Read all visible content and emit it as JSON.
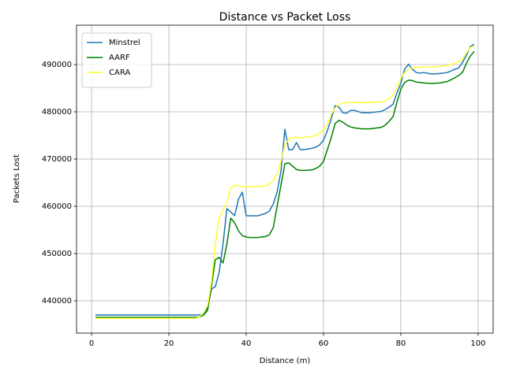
{
  "chart_data": {
    "type": "line",
    "title": "Distance vs Packet Loss",
    "x_label": "Distance (m)",
    "y_label": "Packets Lost",
    "x": [
      1,
      5,
      10,
      15,
      20,
      25,
      27,
      28,
      29,
      30,
      31,
      32,
      33,
      34,
      35,
      36,
      37,
      38,
      39,
      40,
      41,
      43,
      45,
      46,
      47,
      48,
      49,
      50,
      51,
      52,
      53,
      54,
      55,
      57,
      58,
      59,
      60,
      61,
      62,
      63,
      64,
      65,
      66,
      67,
      68,
      70,
      72,
      75,
      76,
      77,
      78,
      79,
      80,
      81,
      82,
      83,
      84,
      85,
      86,
      88,
      90,
      92,
      94,
      95,
      96,
      97,
      98,
      99
    ],
    "series": [
      {
        "name": "Minstrel",
        "color": "#1f77b4",
        "values": [
          437000,
          437000,
          437000,
          437000,
          437000,
          437000,
          437000,
          437000,
          437300,
          438500,
          442500,
          443000,
          446000,
          452000,
          459500,
          458800,
          458000,
          461500,
          463000,
          458000,
          458000,
          458000,
          458500,
          459000,
          460500,
          463000,
          467500,
          476300,
          472000,
          472000,
          473500,
          472000,
          472000,
          472300,
          472500,
          473000,
          474000,
          476000,
          478500,
          481300,
          481000,
          479800,
          479700,
          480300,
          480300,
          479800,
          479800,
          480100,
          480500,
          481000,
          481600,
          484000,
          486000,
          489000,
          490100,
          489000,
          488300,
          488200,
          488300,
          488000,
          488100,
          488300,
          489000,
          489300,
          490500,
          492000,
          493800,
          494300
        ]
      },
      {
        "name": "AARF",
        "color": "#008000",
        "values": [
          436500,
          436500,
          436500,
          436500,
          436500,
          436500,
          436500,
          436600,
          437000,
          438000,
          443000,
          448700,
          449200,
          448000,
          452000,
          457500,
          456500,
          454800,
          453800,
          453500,
          453400,
          453400,
          453600,
          454000,
          455500,
          460000,
          464500,
          469000,
          469200,
          468500,
          467800,
          467600,
          467600,
          467700,
          468000,
          468500,
          469500,
          472000,
          474500,
          477500,
          478200,
          477800,
          477200,
          476800,
          476600,
          476400,
          476400,
          476700,
          477200,
          478000,
          479000,
          482000,
          484800,
          486200,
          486700,
          486600,
          486300,
          486200,
          486100,
          486000,
          486100,
          486400,
          487200,
          487700,
          488400,
          490300,
          491800,
          492800
        ]
      },
      {
        "name": "CARA",
        "color": "#ffff33",
        "values": [
          436300,
          436300,
          436300,
          436300,
          436300,
          436300,
          436300,
          436700,
          437500,
          439000,
          444000,
          452000,
          457500,
          459200,
          460800,
          464000,
          464500,
          464300,
          464200,
          464100,
          464100,
          464200,
          464300,
          464700,
          465500,
          467000,
          469500,
          473000,
          474200,
          474500,
          474600,
          474500,
          474600,
          474800,
          475000,
          475500,
          476300,
          477500,
          479500,
          480800,
          481600,
          481800,
          482000,
          482000,
          482000,
          481900,
          482000,
          482100,
          482300,
          482800,
          483500,
          485300,
          487000,
          488300,
          489000,
          489300,
          489400,
          489400,
          489500,
          489500,
          489600,
          489800,
          490300,
          490600,
          491200,
          492500,
          493600,
          494000
        ]
      }
    ],
    "xlim": [
      -3.9,
      103.9
    ],
    "xticks": [
      0,
      20,
      40,
      60,
      80,
      100
    ],
    "ylim": [
      433170,
      498330
    ],
    "yticks": [
      440000,
      450000,
      460000,
      470000,
      480000,
      490000
    ],
    "grid": true,
    "legend": "upper left"
  }
}
